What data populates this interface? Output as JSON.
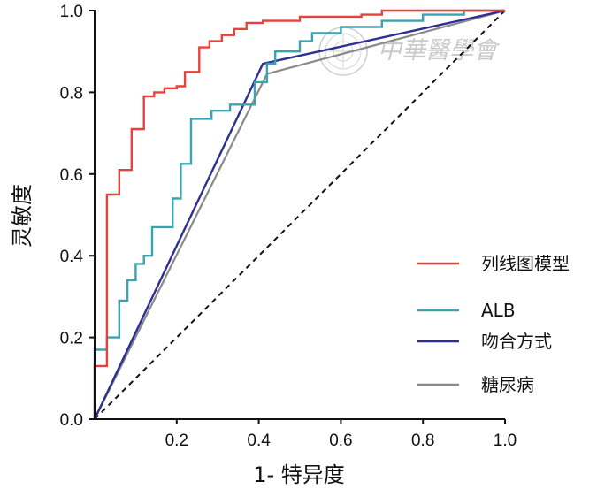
{
  "chart_data": {
    "type": "line",
    "xlabel": "1- 特异度",
    "ylabel": "灵敏度",
    "xlim": [
      0,
      1
    ],
    "ylim": [
      0,
      1
    ],
    "x_ticks": [
      "0.2",
      "0.4",
      "0.6",
      "0.8",
      "1.0"
    ],
    "y_ticks": [
      "0.0",
      "0.2",
      "0.4",
      "0.6",
      "0.8",
      "1.0"
    ],
    "reference_line": {
      "x": [
        0,
        1
      ],
      "y": [
        0,
        1
      ],
      "style": "dashed",
      "color": "#111111"
    },
    "series": [
      {
        "name": "列线图模型",
        "color": "#e8413c",
        "points": [
          [
            0,
            0
          ],
          [
            0,
            0.13
          ],
          [
            0.03,
            0.13
          ],
          [
            0.03,
            0.55
          ],
          [
            0.06,
            0.55
          ],
          [
            0.06,
            0.61
          ],
          [
            0.09,
            0.61
          ],
          [
            0.09,
            0.71
          ],
          [
            0.12,
            0.71
          ],
          [
            0.12,
            0.79
          ],
          [
            0.145,
            0.79
          ],
          [
            0.145,
            0.8
          ],
          [
            0.17,
            0.8
          ],
          [
            0.17,
            0.81
          ],
          [
            0.2,
            0.81
          ],
          [
            0.2,
            0.815
          ],
          [
            0.22,
            0.815
          ],
          [
            0.22,
            0.85
          ],
          [
            0.255,
            0.85
          ],
          [
            0.255,
            0.91
          ],
          [
            0.28,
            0.91
          ],
          [
            0.28,
            0.925
          ],
          [
            0.31,
            0.925
          ],
          [
            0.31,
            0.94
          ],
          [
            0.34,
            0.94
          ],
          [
            0.34,
            0.955
          ],
          [
            0.37,
            0.955
          ],
          [
            0.37,
            0.97
          ],
          [
            0.41,
            0.97
          ],
          [
            0.41,
            0.975
          ],
          [
            0.5,
            0.975
          ],
          [
            0.5,
            0.985
          ],
          [
            0.65,
            0.985
          ],
          [
            0.65,
            0.99
          ],
          [
            0.7,
            0.99
          ],
          [
            0.7,
            1.0
          ],
          [
            1.0,
            1.0
          ]
        ]
      },
      {
        "name": "ALB",
        "color": "#3aa3b0",
        "points": [
          [
            0,
            0
          ],
          [
            0,
            0.17
          ],
          [
            0.03,
            0.17
          ],
          [
            0.03,
            0.2
          ],
          [
            0.06,
            0.2
          ],
          [
            0.06,
            0.29
          ],
          [
            0.08,
            0.29
          ],
          [
            0.08,
            0.34
          ],
          [
            0.1,
            0.34
          ],
          [
            0.1,
            0.38
          ],
          [
            0.12,
            0.38
          ],
          [
            0.12,
            0.4
          ],
          [
            0.14,
            0.4
          ],
          [
            0.14,
            0.47
          ],
          [
            0.19,
            0.47
          ],
          [
            0.19,
            0.54
          ],
          [
            0.21,
            0.54
          ],
          [
            0.21,
            0.625
          ],
          [
            0.235,
            0.625
          ],
          [
            0.235,
            0.735
          ],
          [
            0.285,
            0.735
          ],
          [
            0.285,
            0.755
          ],
          [
            0.33,
            0.755
          ],
          [
            0.33,
            0.77
          ],
          [
            0.39,
            0.77
          ],
          [
            0.39,
            0.825
          ],
          [
            0.42,
            0.825
          ],
          [
            0.42,
            0.87
          ],
          [
            0.44,
            0.87
          ],
          [
            0.44,
            0.9
          ],
          [
            0.5,
            0.9
          ],
          [
            0.5,
            0.925
          ],
          [
            0.53,
            0.925
          ],
          [
            0.53,
            0.945
          ],
          [
            0.6,
            0.945
          ],
          [
            0.6,
            0.96
          ],
          [
            0.7,
            0.96
          ],
          [
            0.7,
            0.975
          ],
          [
            0.8,
            0.975
          ],
          [
            0.8,
            0.99
          ],
          [
            0.9,
            0.99
          ],
          [
            0.9,
            1.0
          ],
          [
            1.0,
            1.0
          ]
        ]
      },
      {
        "name": "吻合方式",
        "color": "#2e2f92",
        "points": [
          [
            0,
            0
          ],
          [
            0.41,
            0.87
          ],
          [
            1.0,
            1.0
          ]
        ]
      },
      {
        "name": "糖尿病",
        "color": "#8a8a8a",
        "points": [
          [
            0,
            0
          ],
          [
            0.42,
            0.845
          ],
          [
            1.0,
            1.0
          ]
        ]
      }
    ],
    "legend_position": "bottom-right"
  },
  "watermark": {
    "text": "中華醫學會"
  }
}
